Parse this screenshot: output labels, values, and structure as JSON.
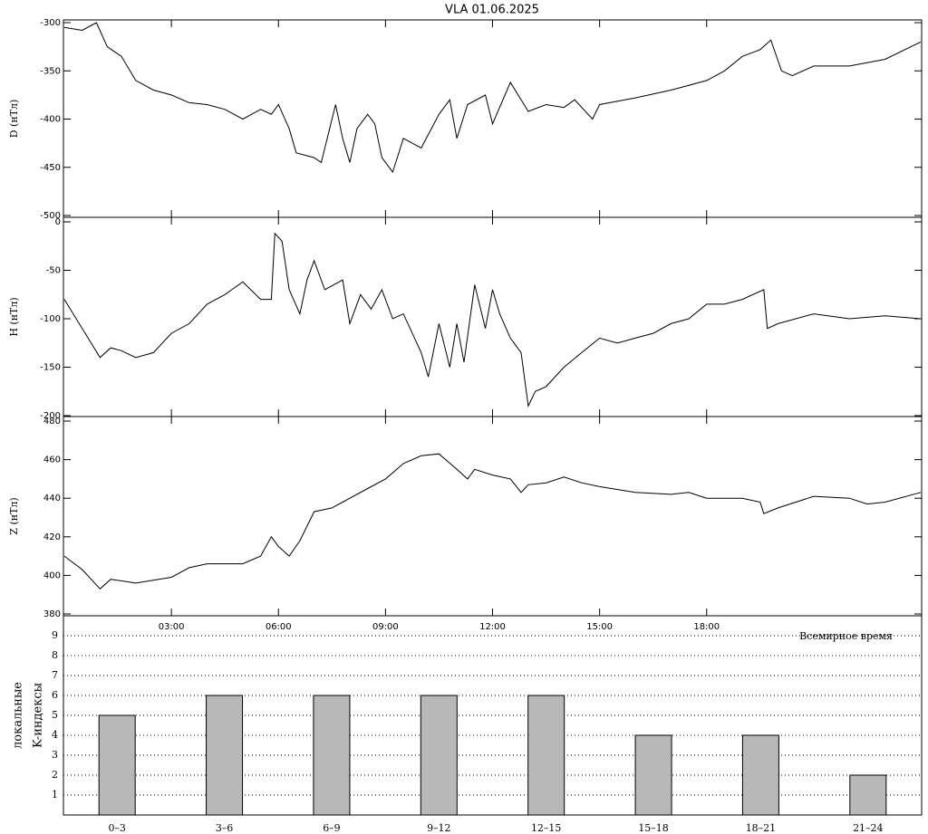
{
  "chart_data": [
    {
      "type": "line",
      "title": "VLA   01.06.2025",
      "ylabel": "D (нТл)",
      "color": "#000000",
      "xlim": [
        0,
        24
      ],
      "ylim": [
        -500,
        -300
      ],
      "yticks": [
        -300,
        -350,
        -400,
        -450,
        -500
      ],
      "x": [
        0,
        0.5,
        0.9,
        1.2,
        1.6,
        2.0,
        2.5,
        3.0,
        3.5,
        4.0,
        4.5,
        5.0,
        5.5,
        5.8,
        6.0,
        6.3,
        6.5,
        7.0,
        7.2,
        7.6,
        7.8,
        8.0,
        8.2,
        8.5,
        8.7,
        8.9,
        9.2,
        9.5,
        10.0,
        10.5,
        10.8,
        11.0,
        11.3,
        11.8,
        12.0,
        12.5,
        13.0,
        13.5,
        14.0,
        14.3,
        14.8,
        15.0,
        16.0,
        17.0,
        18.0,
        18.5,
        19.0,
        19.5,
        19.8,
        20.1,
        20.4,
        21.0,
        22.0,
        23.0,
        24.0
      ],
      "y": [
        -305,
        -308,
        -300,
        -325,
        -335,
        -360,
        -370,
        -375,
        -383,
        -385,
        -390,
        -400,
        -390,
        -395,
        -385,
        -410,
        -435,
        -440,
        -445,
        -385,
        -420,
        -445,
        -410,
        -395,
        -405,
        -440,
        -455,
        -420,
        -430,
        -395,
        -380,
        -420,
        -385,
        -375,
        -405,
        -362,
        -392,
        -385,
        -388,
        -380,
        -400,
        -385,
        -378,
        -370,
        -360,
        -350,
        -335,
        -328,
        -318,
        -350,
        -355,
        -345,
        -345,
        -338,
        -320
      ]
    },
    {
      "type": "line",
      "ylabel": "H (нТл)",
      "color": "#000000",
      "xlim": [
        0,
        24
      ],
      "ylim": [
        -200,
        0
      ],
      "yticks": [
        0,
        -50,
        -100,
        -150,
        -200
      ],
      "x": [
        0,
        0.5,
        1.0,
        1.3,
        1.6,
        2.0,
        2.5,
        3.0,
        3.5,
        4.0,
        4.5,
        5.0,
        5.5,
        5.8,
        5.9,
        6.1,
        6.3,
        6.6,
        6.8,
        7.0,
        7.3,
        7.8,
        8.0,
        8.3,
        8.6,
        8.9,
        9.2,
        9.5,
        10.0,
        10.2,
        10.5,
        10.8,
        11.0,
        11.2,
        11.5,
        11.8,
        12.0,
        12.2,
        12.5,
        12.8,
        13.0,
        13.2,
        13.5,
        14.0,
        14.5,
        15.0,
        15.5,
        16.0,
        16.5,
        17.0,
        17.5,
        18.0,
        18.5,
        19.0,
        19.6,
        19.7,
        20.0,
        21.0,
        22.0,
        23.0,
        24.0
      ],
      "y": [
        -80,
        -110,
        -140,
        -130,
        -133,
        -140,
        -135,
        -115,
        -105,
        -85,
        -75,
        -62,
        -80,
        -80,
        -12,
        -20,
        -70,
        -95,
        -60,
        -40,
        -70,
        -60,
        -105,
        -75,
        -90,
        -70,
        -100,
        -95,
        -135,
        -160,
        -105,
        -150,
        -105,
        -145,
        -65,
        -110,
        -70,
        -95,
        -120,
        -135,
        -190,
        -175,
        -170,
        -150,
        -135,
        -120,
        -125,
        -120,
        -115,
        -105,
        -100,
        -85,
        -85,
        -80,
        -70,
        -110,
        -105,
        -95,
        -100,
        -97,
        -100
      ]
    },
    {
      "type": "line",
      "ylabel": "Z (нТл)",
      "color": "#000000",
      "xlim": [
        0,
        24
      ],
      "ylim": [
        380,
        480
      ],
      "yticks": [
        480,
        460,
        440,
        420,
        400,
        380
      ],
      "xticks": [
        {
          "value": 3,
          "label": "03:00"
        },
        {
          "value": 6,
          "label": "06:00"
        },
        {
          "value": 9,
          "label": "09:00"
        },
        {
          "value": 12,
          "label": "12:00"
        },
        {
          "value": 15,
          "label": "15:00"
        },
        {
          "value": 18,
          "label": "18:00"
        }
      ],
      "x": [
        0,
        0.5,
        1.0,
        1.3,
        2.0,
        3.0,
        3.5,
        4.0,
        5.0,
        5.5,
        5.8,
        6.0,
        6.3,
        6.6,
        7.0,
        7.5,
        8.0,
        8.5,
        9.0,
        9.5,
        10.0,
        10.5,
        11.0,
        11.3,
        11.5,
        12.0,
        12.5,
        12.8,
        13.0,
        13.5,
        14.0,
        14.5,
        15.0,
        16.0,
        17.0,
        17.5,
        18.0,
        19.0,
        19.5,
        19.6,
        20.0,
        21.0,
        22.0,
        22.5,
        23.0,
        24.0
      ],
      "y": [
        410,
        403,
        393,
        398,
        396,
        399,
        404,
        406,
        406,
        410,
        420,
        415,
        410,
        418,
        433,
        435,
        440,
        445,
        450,
        458,
        462,
        463,
        455,
        450,
        455,
        452,
        450,
        443,
        447,
        448,
        451,
        448,
        446,
        443,
        442,
        443,
        440,
        440,
        438,
        432,
        435,
        441,
        440,
        437,
        438,
        443
      ]
    },
    {
      "type": "bar",
      "xlabel": "Всемирное время",
      "ylabel": [
        "локальные",
        "K-индексы"
      ],
      "color": "#b8b8b8",
      "grid": true,
      "categories": [
        "0–3",
        "3–6",
        "6–9",
        "9–12",
        "12–15",
        "15–18",
        "18–21",
        "21–24"
      ],
      "values": [
        5,
        6,
        6,
        6,
        6,
        4,
        4,
        2
      ],
      "ylim": [
        0,
        10
      ],
      "yticks": [
        1,
        2,
        3,
        4,
        5,
        6,
        7,
        8,
        9
      ]
    }
  ]
}
